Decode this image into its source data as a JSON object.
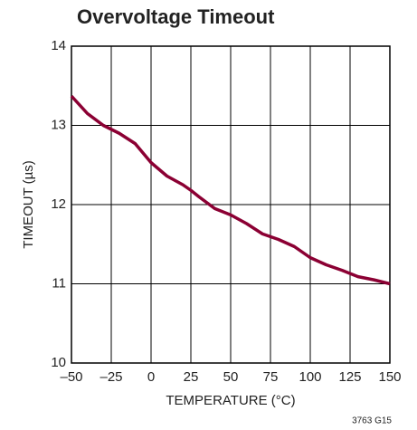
{
  "chart_data": {
    "type": "line",
    "title": "Overvoltage Timeout",
    "x_label": "TEMPERATURE (°C)",
    "y_label": "TIMEOUT (µs)",
    "note": "3763 G15",
    "x": [
      -50,
      -40,
      -30,
      -20,
      -10,
      0,
      10,
      20,
      25,
      30,
      40,
      50,
      60,
      70,
      80,
      90,
      100,
      110,
      120,
      130,
      140,
      150
    ],
    "series": [
      {
        "name": "Timeout",
        "color": "#8b0033",
        "values": [
          13.37,
          13.15,
          13.0,
          12.9,
          12.77,
          12.53,
          12.36,
          12.25,
          12.18,
          12.1,
          11.95,
          11.87,
          11.76,
          11.63,
          11.56,
          11.47,
          11.33,
          11.24,
          11.17,
          11.09,
          11.05,
          11.0
        ]
      }
    ],
    "xlim": [
      -50,
      150
    ],
    "xticks": [
      {
        "value": -50,
        "label": "–50"
      },
      {
        "value": -25,
        "label": "–25"
      },
      0,
      25,
      50,
      75,
      100,
      125,
      150
    ],
    "ylim": [
      10,
      14
    ],
    "yticks": [
      10,
      11,
      12,
      13,
      14
    ],
    "grid": true
  }
}
